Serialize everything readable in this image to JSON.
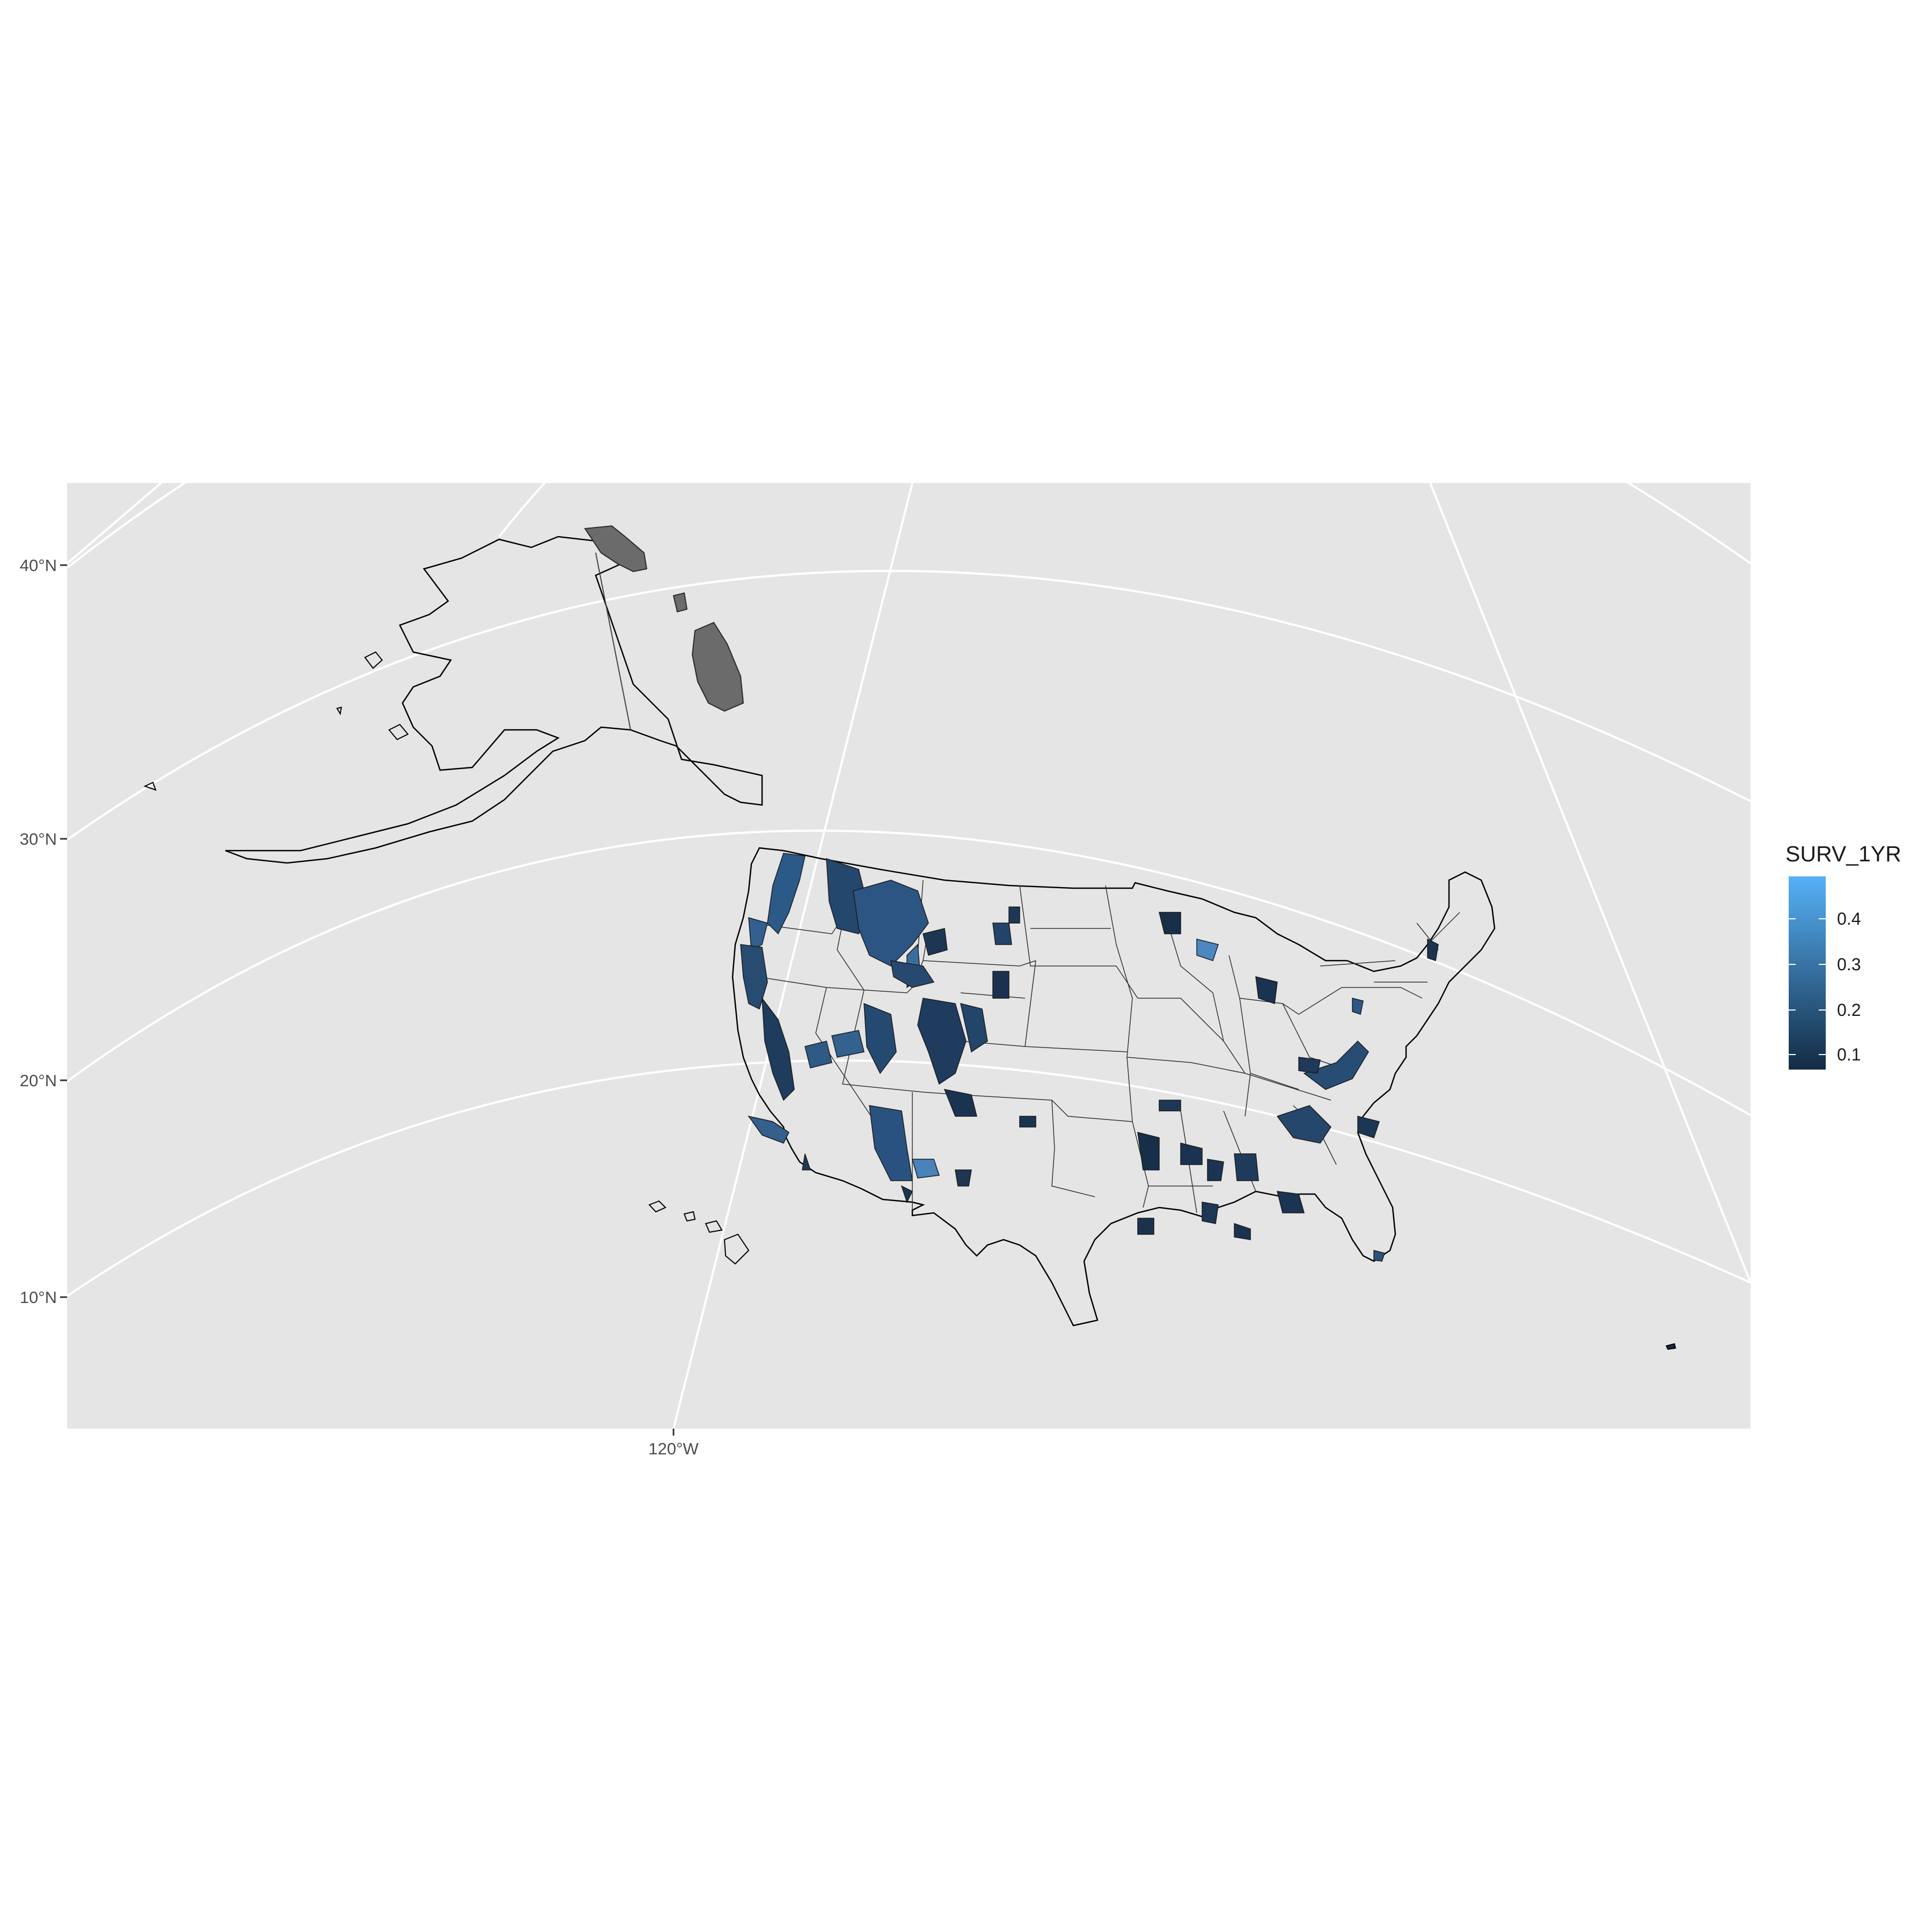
{
  "axes": {
    "y_ticks": [
      "40°N",
      "30°N",
      "20°N",
      "10°N"
    ],
    "x_ticks": [
      "120°W"
    ]
  },
  "legend": {
    "title": "SURV_1YR",
    "ticks": [
      "0.4",
      "0.3",
      "0.2",
      "0.1"
    ],
    "colors": {
      "low": "#132b43",
      "high": "#56b1f7"
    },
    "range": [
      0.05,
      0.5
    ]
  },
  "colors": {
    "panel_background": "#e5e5e5",
    "gridline": "#ffffff",
    "state_border": "#000000",
    "alaska_fill": "#6b6b6b"
  }
}
